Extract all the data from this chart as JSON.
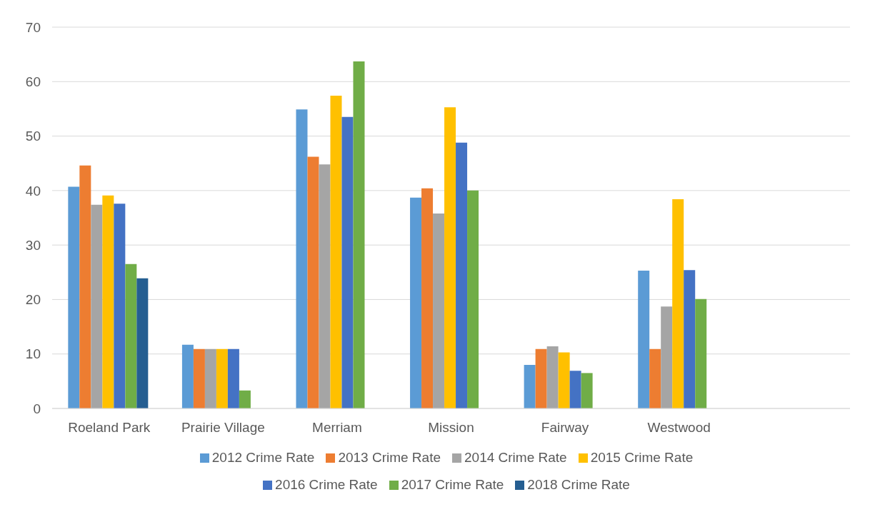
{
  "chart_data": {
    "type": "bar",
    "categories": [
      "Roeland Park",
      "Prairie Village",
      "Merriam",
      "Mission",
      "Fairway",
      "Westwood",
      null
    ],
    "series": [
      {
        "name": "2012 Crime Rate",
        "color": "#5b9bd5",
        "values": [
          40.7,
          11.7,
          54.9,
          38.7,
          8.0,
          25.3,
          null
        ]
      },
      {
        "name": "2013 Crime Rate",
        "color": "#ed7d31",
        "values": [
          44.6,
          10.9,
          46.2,
          40.4,
          10.9,
          10.9,
          null
        ]
      },
      {
        "name": "2014 Crime Rate",
        "color": "#a5a5a5",
        "values": [
          37.4,
          10.9,
          44.8,
          35.8,
          11.4,
          18.7,
          null
        ]
      },
      {
        "name": "2015 Crime Rate",
        "color": "#ffc000",
        "values": [
          39.1,
          10.9,
          57.4,
          55.3,
          10.3,
          38.4,
          null
        ]
      },
      {
        "name": "2016 Crime Rate",
        "color": "#4472c4",
        "values": [
          37.6,
          10.9,
          53.5,
          48.8,
          6.9,
          25.4,
          null
        ]
      },
      {
        "name": "2017 Crime Rate",
        "color": "#70ad47",
        "values": [
          26.5,
          3.3,
          63.7,
          40.0,
          6.5,
          20.1,
          null
        ]
      },
      {
        "name": "2018 Crime Rate",
        "color": "#255e91",
        "values": [
          23.9,
          null,
          null,
          null,
          null,
          null,
          null
        ]
      }
    ],
    "ylim": [
      0,
      70
    ],
    "yticks": [
      0,
      10,
      20,
      30,
      40,
      50,
      60,
      70
    ],
    "grid": "y",
    "legend": "bottom"
  }
}
